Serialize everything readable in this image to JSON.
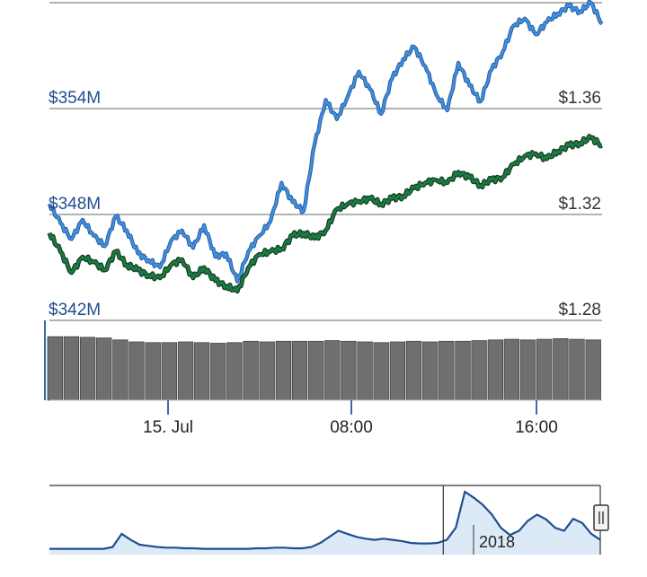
{
  "chart_data": {
    "type": "line",
    "title": "",
    "legend": "none",
    "grid": true,
    "left_axis": {
      "ticks": [
        "$354M",
        "$348M",
        "$342M"
      ],
      "tick_values": [
        354,
        348,
        342
      ],
      "range": [
        342,
        360
      ],
      "unit": "USD millions"
    },
    "right_axis": {
      "ticks": [
        "$1.36",
        "$1.32",
        "$1.28"
      ],
      "tick_values": [
        1.36,
        1.32,
        1.28
      ],
      "range": [
        1.28,
        1.4
      ]
    },
    "x_ticks": [
      "15. Jul",
      "08:00",
      "16:00"
    ],
    "x_tick_positions": [
      0.21,
      0.55,
      0.88
    ],
    "series": [
      {
        "axis": "left",
        "color": "#3d8fe0",
        "x": [
          0,
          0.02,
          0.04,
          0.06,
          0.08,
          0.1,
          0.12,
          0.14,
          0.16,
          0.18,
          0.2,
          0.22,
          0.24,
          0.26,
          0.28,
          0.3,
          0.32,
          0.34,
          0.36,
          0.38,
          0.4,
          0.42,
          0.44,
          0.46,
          0.48,
          0.5,
          0.52,
          0.54,
          0.56,
          0.58,
          0.6,
          0.62,
          0.64,
          0.66,
          0.68,
          0.7,
          0.72,
          0.74,
          0.76,
          0.78,
          0.8,
          0.82,
          0.84,
          0.86,
          0.88,
          0.9,
          0.92,
          0.94,
          0.96,
          0.98,
          1
        ],
        "values": [
          348.6,
          347.5,
          346.6,
          347.7,
          346.8,
          346.2,
          347.9,
          347.1,
          345.8,
          345.4,
          345.0,
          346.5,
          347.1,
          346.1,
          347.4,
          345.6,
          345.8,
          344.2,
          345.9,
          346.8,
          347.6,
          349.8,
          348.7,
          348.2,
          352.0,
          354.5,
          353.4,
          354.7,
          356.1,
          355.1,
          353.7,
          355.7,
          356.8,
          357.5,
          356.4,
          354.8,
          353.9,
          356.6,
          355.3,
          354.4,
          356.2,
          357.2,
          358.7,
          359.1,
          358.2,
          358.9,
          359.4,
          359.8,
          359.5,
          360.0,
          358.8
        ]
      },
      {
        "axis": "right",
        "color": "#1f7a43",
        "x": [
          0,
          0.02,
          0.04,
          0.06,
          0.08,
          0.1,
          0.12,
          0.14,
          0.16,
          0.18,
          0.2,
          0.22,
          0.24,
          0.26,
          0.28,
          0.3,
          0.32,
          0.34,
          0.36,
          0.38,
          0.4,
          0.42,
          0.44,
          0.46,
          0.48,
          0.5,
          0.52,
          0.54,
          0.56,
          0.58,
          0.6,
          0.62,
          0.64,
          0.66,
          0.68,
          0.7,
          0.72,
          0.74,
          0.76,
          0.78,
          0.8,
          0.82,
          0.84,
          0.86,
          0.88,
          0.9,
          0.92,
          0.94,
          0.96,
          0.98,
          1
        ],
        "values": [
          1.313,
          1.306,
          1.298,
          1.304,
          1.302,
          1.299,
          1.306,
          1.301,
          1.299,
          1.297,
          1.296,
          1.301,
          1.303,
          1.296,
          1.3,
          1.295,
          1.293,
          1.291,
          1.3,
          1.305,
          1.306,
          1.307,
          1.312,
          1.313,
          1.311,
          1.314,
          1.322,
          1.324,
          1.325,
          1.326,
          1.324,
          1.326,
          1.327,
          1.33,
          1.332,
          1.333,
          1.332,
          1.336,
          1.334,
          1.331,
          1.333,
          1.334,
          1.339,
          1.342,
          1.343,
          1.341,
          1.344,
          1.346,
          1.347,
          1.349,
          1.346
        ]
      }
    ],
    "volume": {
      "color": "#6f6f6f",
      "values": [
        0.97,
        0.97,
        0.96,
        0.95,
        0.92,
        0.89,
        0.88,
        0.88,
        0.89,
        0.88,
        0.87,
        0.88,
        0.9,
        0.89,
        0.9,
        0.9,
        0.9,
        0.91,
        0.9,
        0.89,
        0.88,
        0.89,
        0.9,
        0.89,
        0.9,
        0.9,
        0.91,
        0.92,
        0.93,
        0.92,
        0.93,
        0.94,
        0.93,
        0.92
      ]
    },
    "navigator": {
      "label": "2018",
      "series_color": "#1f4f8f",
      "fill_color": "#dceaf7",
      "values": [
        0.05,
        0.05,
        0.05,
        0.05,
        0.05,
        0.05,
        0.05,
        0.08,
        0.3,
        0.2,
        0.12,
        0.1,
        0.08,
        0.07,
        0.07,
        0.06,
        0.06,
        0.05,
        0.05,
        0.05,
        0.05,
        0.05,
        0.05,
        0.06,
        0.06,
        0.07,
        0.07,
        0.06,
        0.06,
        0.08,
        0.15,
        0.25,
        0.35,
        0.3,
        0.25,
        0.22,
        0.2,
        0.22,
        0.2,
        0.18,
        0.15,
        0.14,
        0.14,
        0.15,
        0.2,
        0.4,
        1.0,
        0.9,
        0.78,
        0.62,
        0.4,
        0.28,
        0.35,
        0.52,
        0.62,
        0.54,
        0.4,
        0.35,
        0.55,
        0.48,
        0.3,
        0.2
      ],
      "selected_range": [
        0.715,
        1.0
      ]
    }
  }
}
